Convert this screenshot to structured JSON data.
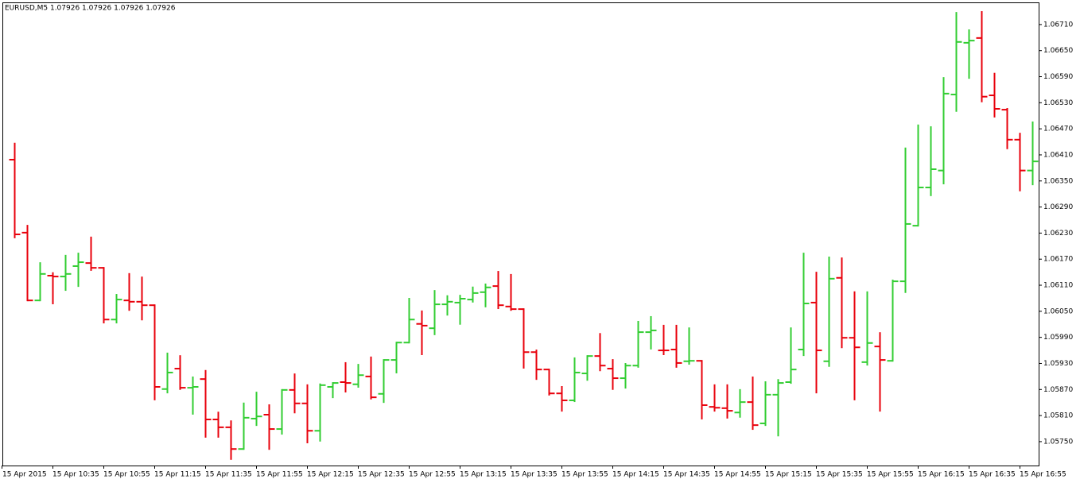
{
  "chart_data": {
    "type": "ohlc",
    "title": "EURUSD,M5  1.07926 1.07926 1.07926 1.07926",
    "categories": [
      "15 Apr 2015",
      null,
      null,
      null,
      "15 Apr 10:35",
      null,
      null,
      null,
      "15 Apr 10:55",
      null,
      null,
      null,
      "15 Apr 11:15",
      null,
      null,
      null,
      "15 Apr 11:35",
      null,
      null,
      null,
      "15 Apr 11:55",
      null,
      null,
      null,
      "15 Apr 12:15",
      null,
      null,
      null,
      "15 Apr 12:35",
      null,
      null,
      null,
      "15 Apr 12:55",
      null,
      null,
      null,
      "15 Apr 13:15",
      null,
      null,
      null,
      "15 Apr 13:35",
      null,
      null,
      null,
      "15 Apr 13:55",
      null,
      null,
      null,
      "15 Apr 14:15",
      null,
      null,
      null,
      "15 Apr 14:35",
      null,
      null,
      null,
      "15 Apr 14:55",
      null,
      null,
      null,
      "15 Apr 15:15",
      null,
      null,
      null,
      "15 Apr 15:35",
      null,
      null,
      null,
      "15 Apr 15:55",
      null,
      null,
      null,
      "15 Apr 16:15",
      null,
      null,
      null,
      "15 Apr 16:35",
      null,
      null,
      null,
      "15 Apr 16:55",
      null
    ],
    "open": [
      null,
      1.06399,
      1.06231,
      1.06075,
      1.06132,
      1.0613,
      1.06154,
      1.06161,
      1.0615,
      1.06031,
      1.06075,
      1.06072,
      1.06064,
      1.05871,
      1.05918,
      1.05874,
      1.05894,
      1.05801,
      1.05783,
      1.05733,
      1.05803,
      1.05812,
      1.05779,
      1.05869,
      1.05838,
      1.05775,
      1.05876,
      1.05887,
      1.05882,
      1.059,
      1.0586,
      1.05938,
      1.05978,
      1.06021,
      1.06011,
      1.06066,
      1.0607,
      1.06077,
      1.06094,
      1.06108,
      1.06061,
      1.06055,
      1.05956,
      1.05916,
      1.05861,
      1.05845,
      1.05907,
      1.05947,
      1.05918,
      1.05896,
      1.05925,
      1.06002,
      1.0596,
      1.05962,
      1.05935,
      1.05936,
      1.0583,
      1.05827,
      1.05817,
      1.05841,
      1.05792,
      1.05858,
      1.05887,
      1.05962,
      1.0607,
      1.05935,
      1.06127,
      1.05989,
      1.05933,
      1.05969,
      1.05936,
      1.06119,
      1.06247,
      1.06335,
      1.06374,
      1.06549,
      1.06668,
      1.06679,
      1.06547,
      1.06514,
      1.06445,
      1.06374
    ],
    "high": [
      null,
      1.06436,
      1.06247,
      1.06161,
      1.06138,
      1.06178,
      1.06183,
      1.0622,
      1.0615,
      1.06088,
      1.06136,
      1.06128,
      1.06064,
      1.05953,
      1.05947,
      1.05898,
      1.05913,
      1.05817,
      1.05797,
      1.05838,
      1.05863,
      1.05834,
      1.05869,
      1.05905,
      1.0588,
      1.05882,
      1.05885,
      1.05931,
      1.05927,
      1.05944,
      1.05938,
      1.05978,
      1.06079,
      1.0605,
      1.06097,
      1.06085,
      1.06086,
      1.06105,
      1.06112,
      1.06141,
      1.06134,
      1.06055,
      1.0596,
      1.05916,
      1.05876,
      1.05942,
      1.05947,
      1.05998,
      1.05938,
      1.05929,
      1.06026,
      1.06037,
      1.06017,
      1.06017,
      1.06011,
      1.05936,
      1.0588,
      1.0588,
      1.05869,
      1.05898,
      1.05887,
      1.05892,
      1.06011,
      1.06183,
      1.06139,
      1.06174,
      1.06172,
      1.06094,
      1.06094,
      1.06,
      1.06121,
      1.06425,
      1.06478,
      1.06474,
      1.06587,
      1.06737,
      1.06697,
      1.06739,
      1.06597,
      1.06516,
      1.06459,
      1.06485
    ],
    "low": [
      null,
      1.0622,
      1.06075,
      1.06075,
      1.06068,
      1.06099,
      1.06108,
      1.06145,
      1.06024,
      1.06024,
      1.06053,
      1.06031,
      1.05847,
      1.05863,
      1.05871,
      1.05814,
      1.05761,
      1.05761,
      1.0571,
      1.05733,
      1.05788,
      1.05733,
      1.05768,
      1.05817,
      1.05748,
      1.05752,
      1.05852,
      1.05865,
      1.05876,
      1.05849,
      1.05841,
      1.05909,
      1.05978,
      1.05951,
      1.05997,
      1.06042,
      1.06021,
      1.06072,
      1.06061,
      1.06057,
      1.06053,
      1.0592,
      1.05894,
      1.05858,
      1.05821,
      1.05843,
      1.05892,
      1.05914,
      1.05871,
      1.05874,
      1.05922,
      1.05964,
      1.05951,
      1.05922,
      1.05929,
      1.05803,
      1.05821,
      1.05805,
      1.05807,
      1.05779,
      1.05788,
      1.05764,
      1.05885,
      1.05949,
      1.05863,
      1.05924,
      1.05967,
      1.05847,
      1.05927,
      1.05821,
      1.05936,
      1.06094,
      1.06247,
      1.06317,
      1.06344,
      1.06511,
      1.06587,
      1.06533,
      1.06498,
      1.06425,
      1.06328,
      1.06342
    ],
    "close": [
      null,
      1.06227,
      1.06075,
      1.06136,
      1.0613,
      1.06136,
      1.06163,
      1.0615,
      1.06031,
      1.06077,
      1.06072,
      1.06064,
      1.05876,
      1.05909,
      1.05874,
      1.05876,
      1.05801,
      1.05783,
      1.05733,
      1.05805,
      1.05808,
      1.05779,
      1.05869,
      1.05838,
      1.05775,
      1.0588,
      1.05885,
      1.05885,
      1.05903,
      1.05852,
      1.05938,
      1.05978,
      1.06031,
      1.06017,
      1.06066,
      1.06072,
      1.06079,
      1.06092,
      1.06105,
      1.06064,
      1.06055,
      1.05956,
      1.05916,
      1.05861,
      1.05845,
      1.05909,
      1.05947,
      1.05925,
      1.05896,
      1.05925,
      1.06002,
      1.06006,
      1.0596,
      1.05931,
      1.05936,
      1.05834,
      1.05828,
      1.05821,
      1.05841,
      1.05788,
      1.05858,
      1.05885,
      1.05916,
      1.06068,
      1.0596,
      1.06125,
      1.05989,
      1.05967,
      1.05977,
      1.05938,
      1.06119,
      1.06251,
      1.06335,
      1.06377,
      1.06551,
      1.0667,
      1.06673,
      1.06544,
      1.06516,
      1.06445,
      1.06374,
      1.06395
    ],
    "up_color": "#32cd32",
    "down_color": "#e8000b",
    "ylim": [
      1.05695,
      1.06761
    ],
    "yticks": [
      {
        "value": 1.0671,
        "label": "1.06710"
      },
      {
        "value": 1.0665,
        "label": "1.06650"
      },
      {
        "value": 1.0659,
        "label": "1.06590"
      },
      {
        "value": 1.0653,
        "label": "1.06530"
      },
      {
        "value": 1.0647,
        "label": "1.06470"
      },
      {
        "value": 1.0641,
        "label": "1.06410"
      },
      {
        "value": 1.0635,
        "label": "1.06350"
      },
      {
        "value": 1.0629,
        "label": "1.06290"
      },
      {
        "value": 1.0623,
        "label": "1.06230"
      },
      {
        "value": 1.0617,
        "label": "1.06170"
      },
      {
        "value": 1.0611,
        "label": "1.06110"
      },
      {
        "value": 1.0605,
        "label": "1.06050"
      },
      {
        "value": 1.0599,
        "label": "1.05990"
      },
      {
        "value": 1.0593,
        "label": "1.05930"
      },
      {
        "value": 1.0587,
        "label": "1.05870"
      },
      {
        "value": 1.0581,
        "label": "1.05810"
      },
      {
        "value": 1.0575,
        "label": "1.05750"
      }
    ],
    "grid": false
  }
}
